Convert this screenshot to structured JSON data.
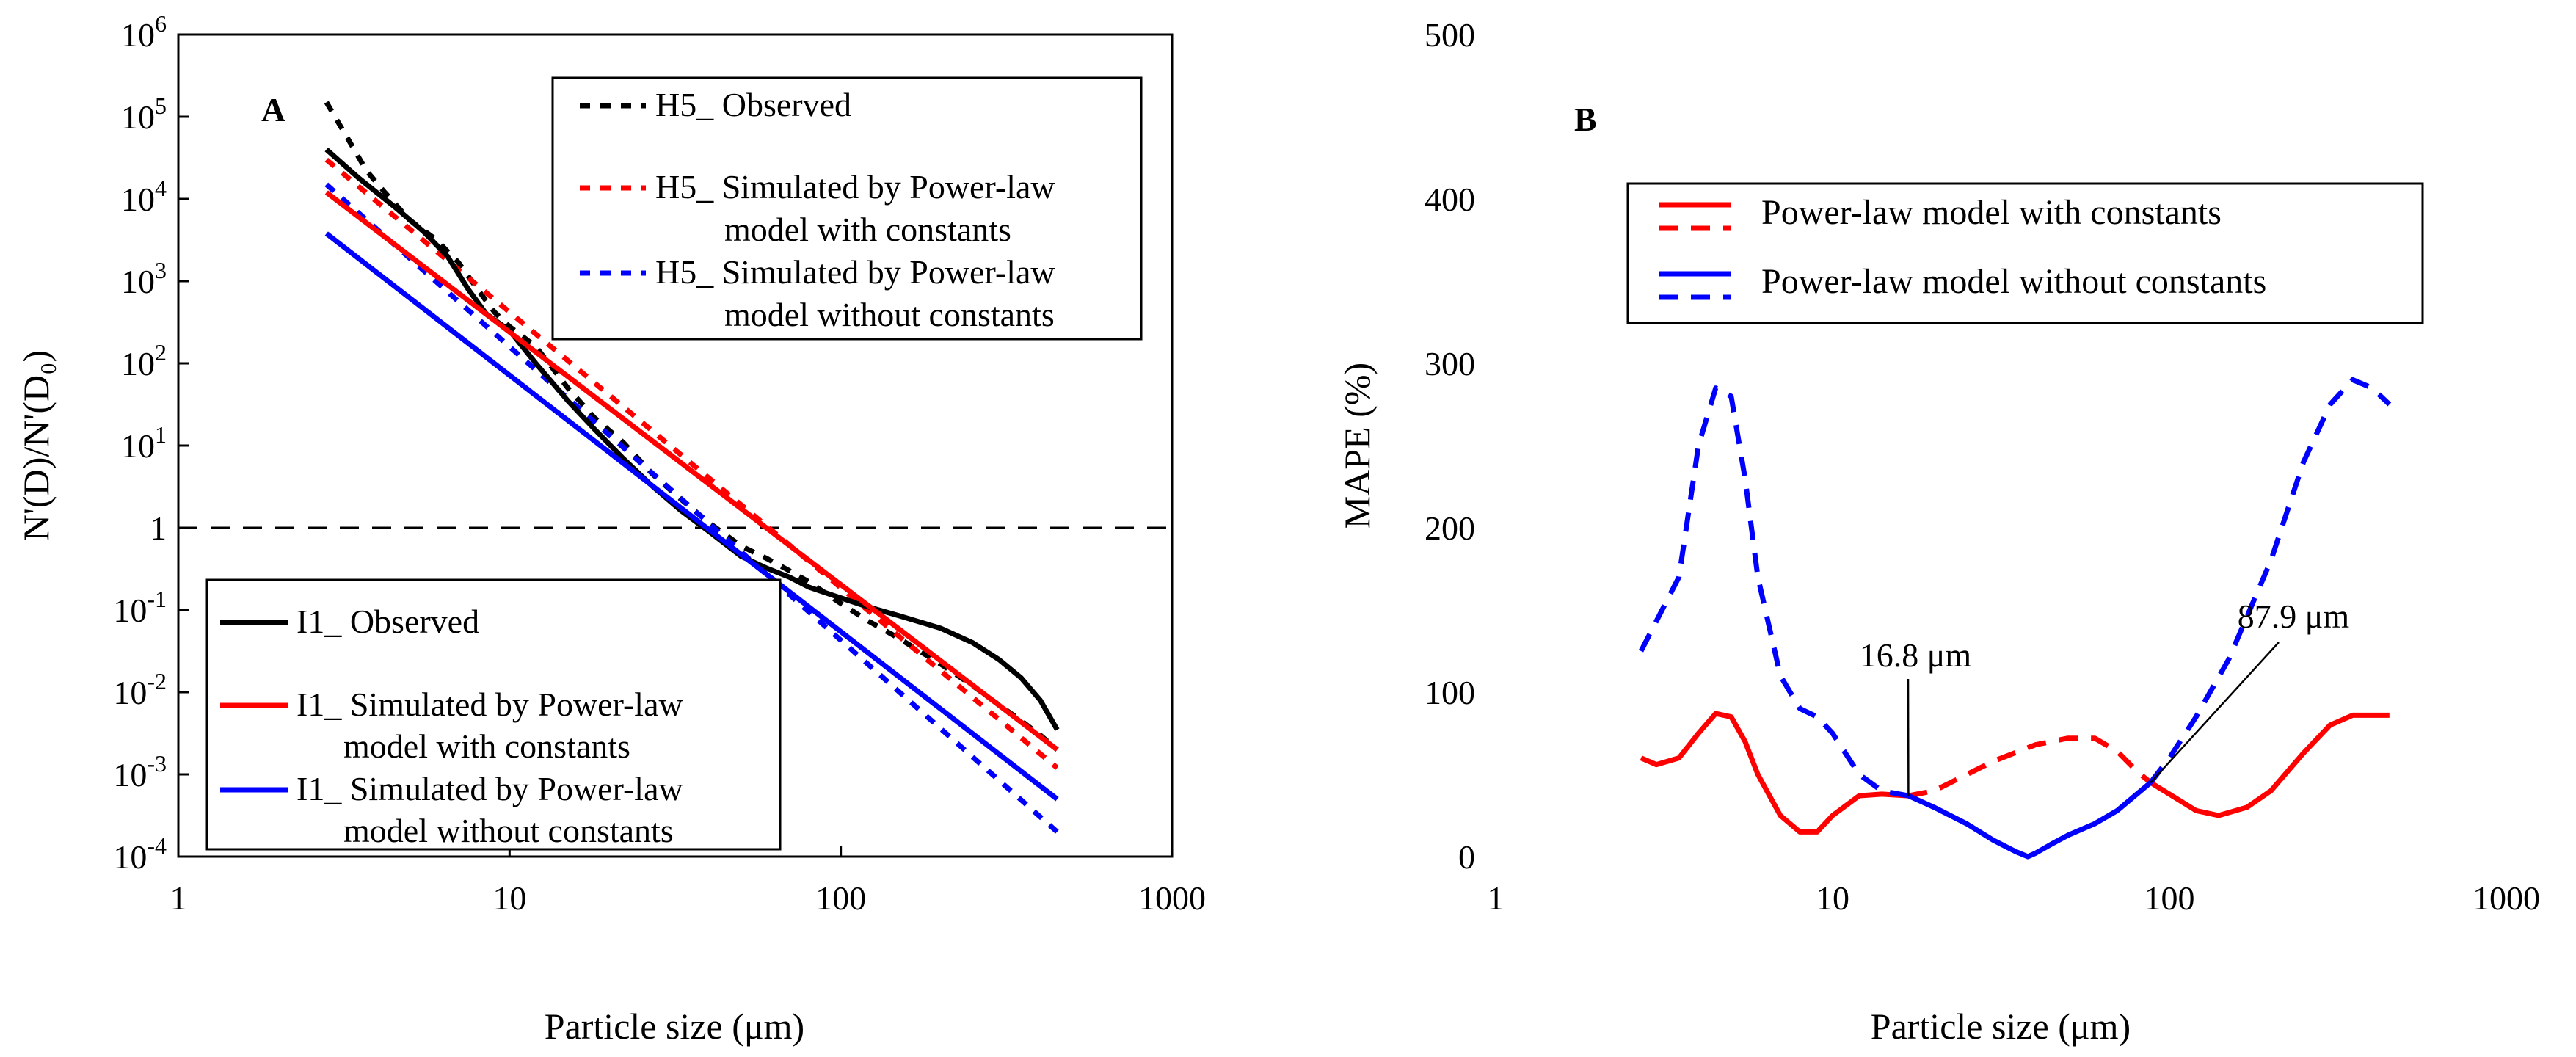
{
  "chart_data": [
    {
      "type": "line",
      "panel_label": "A",
      "xlabel": "Particle size (μm)",
      "ylabel": "N'(D)/N'(D₀)",
      "xscale": "log",
      "yscale": "log",
      "xlim": [
        1,
        1000
      ],
      "ylim": [
        0.0001,
        1000000
      ],
      "x_ticks": [
        1,
        10,
        100,
        1000
      ],
      "x_tick_labels": [
        "1",
        "10",
        "100",
        "1000"
      ],
      "y_ticks": [
        0.0001,
        0.001,
        0.01,
        0.1,
        1,
        10,
        100,
        1000,
        10000,
        100000,
        1000000
      ],
      "y_tick_labels": [
        {
          "base": "10",
          "exp": "-4"
        },
        {
          "base": "10",
          "exp": "-3"
        },
        {
          "base": "10",
          "exp": "-2"
        },
        {
          "base": "10",
          "exp": "-1"
        },
        {
          "base": "1",
          "exp": ""
        },
        {
          "base": "10",
          "exp": "1"
        },
        {
          "base": "10",
          "exp": "2"
        },
        {
          "base": "10",
          "exp": "3"
        },
        {
          "base": "10",
          "exp": "4"
        },
        {
          "base": "10",
          "exp": "5"
        },
        {
          "base": "10",
          "exp": "6"
        }
      ],
      "grid": false,
      "reference_line": {
        "y": 1,
        "style": "dashed",
        "color": "#000000"
      },
      "legends": [
        {
          "placement": "top-right",
          "entries": [
            [
              "H5_ Observed"
            ],
            [
              "H5_ Simulated by Power-law",
              "model with constants"
            ],
            [
              "H5_ Simulated by Power-law",
              "model without constants"
            ]
          ]
        },
        {
          "placement": "bottom-left",
          "entries": [
            [
              "I1_ Observed"
            ],
            [
              "I1_ Simulated by Power-law",
              "model with constants"
            ],
            [
              "I1_ Simulated by Power-law",
              "model without constants"
            ]
          ]
        }
      ],
      "series": [
        {
          "name": "H5_ Observed",
          "color": "#000000",
          "style": "dotted",
          "x": [
            2.8,
            3.2,
            3.7,
            4.2,
            5,
            6,
            7,
            8,
            9,
            10,
            12,
            15,
            18,
            22,
            27,
            33,
            40,
            50,
            60,
            70,
            80,
            100,
            120,
            150,
            200,
            250,
            300,
            350,
            400,
            450
          ],
          "y": [
            150000,
            60000,
            22000,
            12000,
            5500,
            3200,
            1700,
            800,
            420,
            280,
            160,
            50,
            22,
            11,
            4.5,
            2.2,
            1.15,
            0.6,
            0.42,
            0.3,
            0.22,
            0.12,
            0.075,
            0.045,
            0.022,
            0.012,
            0.007,
            0.0045,
            0.003,
            0.002
          ]
        },
        {
          "name": "H5_ Simulated by Power-law model with constants",
          "color": "#ff0000",
          "style": "dotted",
          "x": [
            2.8,
            450
          ],
          "y": [
            30000,
            0.0012
          ]
        },
        {
          "name": "H5_ Simulated by Power-law model without constants",
          "color": "#0000ff",
          "style": "dotted",
          "x": [
            2.8,
            450
          ],
          "y": [
            15000,
            0.0002
          ]
        },
        {
          "name": "I1_ Observed",
          "color": "#000000",
          "style": "solid",
          "x": [
            2.8,
            3.5,
            4.5,
            5.5,
            6.5,
            7.5,
            8.5,
            10,
            12,
            15,
            18,
            22,
            27,
            33,
            40,
            50,
            60,
            70,
            80,
            100,
            120,
            150,
            200,
            250,
            300,
            350,
            400,
            450
          ],
          "y": [
            40000,
            18000,
            8000,
            4000,
            2000,
            800,
            400,
            250,
            100,
            35,
            16,
            7,
            3.2,
            1.6,
            0.9,
            0.45,
            0.32,
            0.25,
            0.19,
            0.14,
            0.11,
            0.085,
            0.06,
            0.04,
            0.025,
            0.015,
            0.008,
            0.0035
          ]
        },
        {
          "name": "I1_ Simulated by Power-law model with constants",
          "color": "#ff0000",
          "style": "solid",
          "x": [
            2.8,
            450
          ],
          "y": [
            12000,
            0.002
          ]
        },
        {
          "name": "I1_ Simulated by Power-law model without constants",
          "color": "#0000ff",
          "style": "solid",
          "x": [
            2.8,
            450
          ],
          "y": [
            3800,
            0.0005
          ]
        }
      ]
    },
    {
      "type": "line",
      "panel_label": "B",
      "xlabel": "Particle size (μm)",
      "ylabel": "MAPE (%)",
      "xscale": "log",
      "yscale": "linear",
      "xlim": [
        1,
        1000
      ],
      "ylim": [
        0,
        500
      ],
      "x_ticks": [
        1,
        10,
        100,
        1000
      ],
      "x_tick_labels": [
        "1",
        "10",
        "100",
        "1000"
      ],
      "y_ticks": [
        0,
        100,
        200,
        300,
        400,
        500
      ],
      "y_tick_labels": [
        "0",
        "100",
        "200",
        "300",
        "400",
        "500"
      ],
      "grid": false,
      "legend": {
        "placement": "top-right",
        "entries": [
          {
            "label": "Power-law model with constants",
            "color": "#ff0000"
          },
          {
            "label": "Power-law model without constants",
            "color": "#0000ff"
          }
        ]
      },
      "annotations": [
        {
          "text": "16.8 μm",
          "x": 16.8,
          "y": 37
        },
        {
          "text": "87.9 μm",
          "x": 87.9,
          "y": 45
        }
      ],
      "series": [
        {
          "name": "Power-law model with constants",
          "color": "#ff0000",
          "style": "solid",
          "x": [
            2.7,
            3,
            3.5,
            4,
            4.5,
            5,
            5.5,
            6,
            7,
            8,
            9,
            10,
            12,
            14,
            16.8
          ],
          "y": [
            60,
            56,
            60,
            75,
            87,
            85,
            70,
            50,
            25,
            15,
            15,
            25,
            37,
            38,
            37
          ]
        },
        {
          "name": "Power-law model with constants",
          "color": "#ff0000",
          "style": "dashed",
          "x": [
            16.8,
            20,
            30,
            40,
            50,
            60,
            70,
            80,
            87.9
          ],
          "y": [
            37,
            40,
            58,
            68,
            72,
            72,
            64,
            52,
            45
          ]
        },
        {
          "name": "Power-law model with constants",
          "color": "#ff0000",
          "style": "solid",
          "x": [
            87.9,
            100,
            120,
            140,
            170,
            200,
            250,
            300,
            350,
            400,
            450
          ],
          "y": [
            45,
            38,
            28,
            25,
            30,
            40,
            63,
            80,
            86,
            86,
            86
          ]
        },
        {
          "name": "Power-law model without constants",
          "color": "#0000ff",
          "style": "dashed",
          "x": [
            2.7,
            3.5,
            4,
            4.5,
            5,
            5.5,
            6,
            7,
            8,
            9,
            10,
            12,
            14,
            16.8
          ],
          "y": [
            125,
            170,
            250,
            285,
            280,
            230,
            170,
            110,
            90,
            85,
            75,
            50,
            40,
            37
          ]
        },
        {
          "name": "Power-law model without constants",
          "color": "#0000ff",
          "style": "solid",
          "x": [
            16.8,
            20,
            25,
            30,
            35,
            38,
            40,
            45,
            50,
            60,
            70,
            80,
            87.9
          ],
          "y": [
            37,
            30,
            20,
            10,
            3,
            0,
            2,
            8,
            13,
            20,
            28,
            38,
            45
          ]
        },
        {
          "name": "Power-law model without constants",
          "color": "#0000ff",
          "style": "dashed",
          "x": [
            87.9,
            100,
            120,
            150,
            200,
            250,
            300,
            350,
            400,
            450
          ],
          "y": [
            45,
            60,
            85,
            120,
            180,
            240,
            275,
            290,
            285,
            275
          ]
        }
      ]
    }
  ]
}
